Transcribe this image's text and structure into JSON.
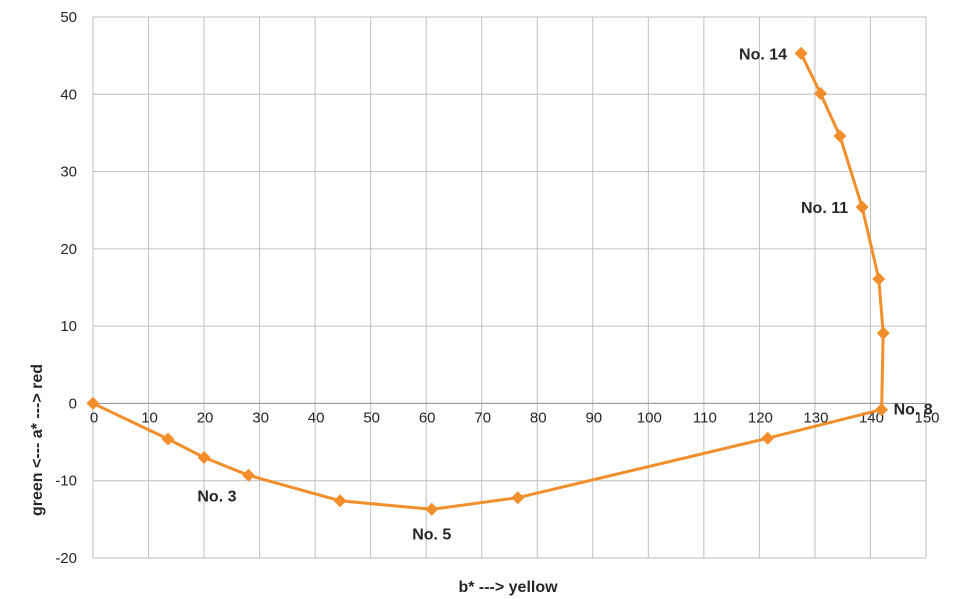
{
  "chart_data": {
    "type": "scatter",
    "xlabel": "b*  ---> yellow",
    "ylabel": "green  <---   a*   --->  red",
    "xlim": [
      0,
      150
    ],
    "ylim": [
      -20,
      50
    ],
    "x_ticks": [
      "0",
      "10",
      "20",
      "30",
      "40",
      "50",
      "60",
      "70",
      "80",
      "90",
      "100",
      "110",
      "120",
      "130",
      "140",
      "150"
    ],
    "y_ticks": [
      "-20",
      "-10",
      "0",
      "10",
      "20",
      "30",
      "40",
      "50"
    ],
    "grid": true,
    "legend": "none",
    "series": [
      {
        "color": "#f28e2b",
        "marker": "diamond",
        "points": [
          {
            "x": 0,
            "y": 0
          },
          {
            "x": 13.5,
            "y": -4.6
          },
          {
            "x": 20,
            "y": -7
          },
          {
            "x": 28,
            "y": -9.3
          },
          {
            "x": 44.5,
            "y": -12.6
          },
          {
            "x": 61,
            "y": -13.7
          },
          {
            "x": 76.5,
            "y": -12.2
          },
          {
            "x": 121.5,
            "y": -4.5
          },
          {
            "x": 142,
            "y": -0.8
          },
          {
            "x": 142.3,
            "y": 9.1
          },
          {
            "x": 141.5,
            "y": 16.1
          },
          {
            "x": 138.5,
            "y": 25.4
          },
          {
            "x": 134.5,
            "y": 34.6
          },
          {
            "x": 131,
            "y": 40.1
          },
          {
            "x": 127.5,
            "y": 45.3
          }
        ]
      }
    ],
    "annotations": [
      {
        "text": "No. 3",
        "point_index": 3,
        "position": "below-left"
      },
      {
        "text": "No. 5",
        "point_index": 5,
        "position": "below"
      },
      {
        "text": "No. 8",
        "point_index": 8,
        "position": "right"
      },
      {
        "text": "No. 11",
        "point_index": 11,
        "position": "left"
      },
      {
        "text": "No. 14",
        "point_index": 14,
        "position": "left"
      }
    ]
  }
}
